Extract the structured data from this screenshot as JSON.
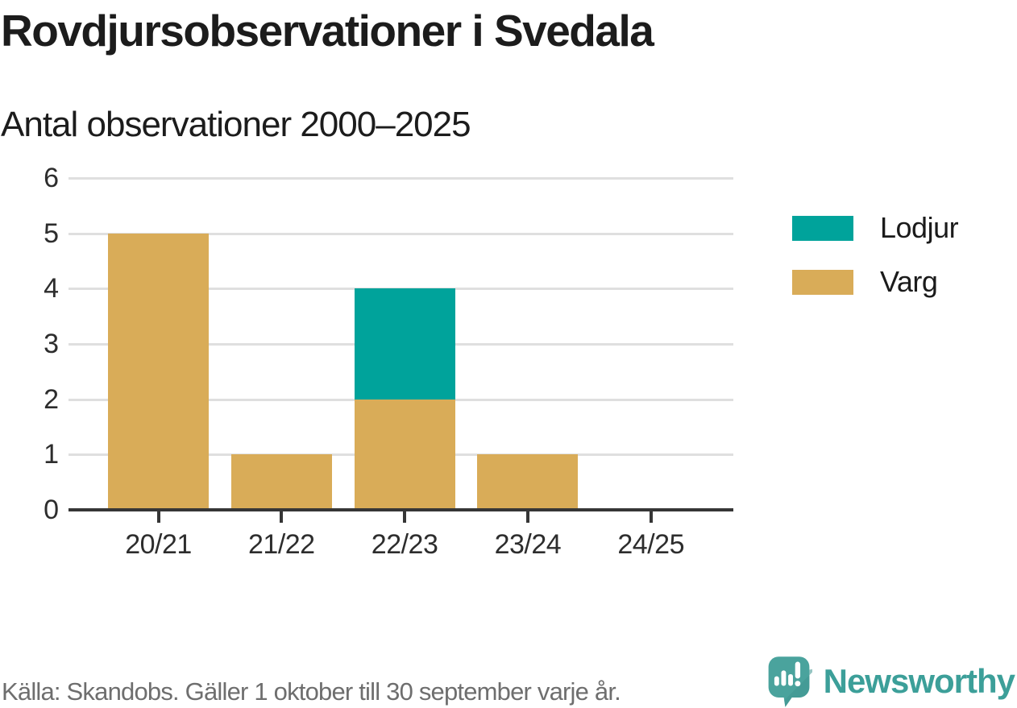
{
  "title": "Rovdjursobservationer i Svedala",
  "subtitle": "Antal observationer 2000–2025",
  "legend": [
    {
      "label": "Lodjur",
      "color": "#00a39b"
    },
    {
      "label": "Varg",
      "color": "#d9ac58"
    }
  ],
  "footer": {
    "source": "Källa: Skandobs. Gäller 1 oktober till 30 september varje år.",
    "brand": "Newsworthy"
  },
  "colors": {
    "lodjur_teal": "#00a39b",
    "varg_tan": "#d9ac58",
    "axis": "#363636",
    "grid": "#dfdfdf",
    "brand_teal": "#3c9f99",
    "text": "#1c1c1c",
    "muted_text": "#6e6e6e"
  },
  "chart_data": {
    "type": "bar",
    "stacked": true,
    "title": "Rovdjursobservationer i Svedala",
    "subtitle": "Antal observationer 2000–2025",
    "categories": [
      "20/21",
      "21/22",
      "22/23",
      "23/24",
      "24/25"
    ],
    "series": [
      {
        "name": "Lodjur",
        "color": "#00a39b",
        "values": [
          0,
          0,
          2,
          0,
          0
        ]
      },
      {
        "name": "Varg",
        "color": "#d9ac58",
        "values": [
          5,
          1,
          2,
          1,
          0
        ]
      }
    ],
    "xlabel": "",
    "ylabel": "",
    "ylim": [
      0,
      6
    ],
    "yticks": [
      0,
      1,
      2,
      3,
      4,
      5,
      6
    ],
    "grid": true,
    "legend_position": "right",
    "source_note": "Källa: Skandobs. Gäller 1 oktober till 30 september varje år."
  }
}
